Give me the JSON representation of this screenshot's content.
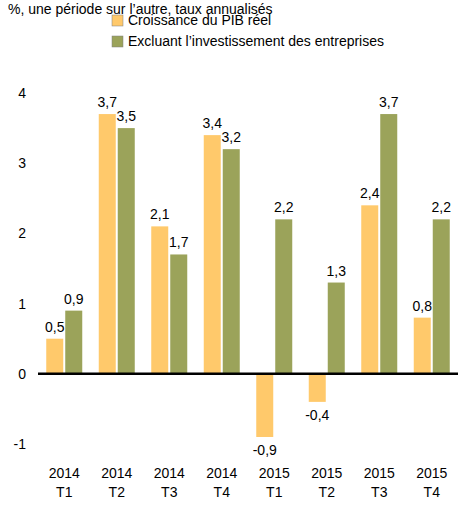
{
  "chart_data": {
    "type": "bar",
    "y_label": "%, une période sur l’autre, taux annualisés",
    "categories": [
      "2014\nT1",
      "2014\nT2",
      "2014\nT3",
      "2014\nT4",
      "2015\nT1",
      "2015\nT2",
      "2015\nT3",
      "2015\nT4"
    ],
    "series": [
      {
        "name": "Croissance du PIB réel",
        "color": "#ffc96b",
        "values": [
          0.5,
          3.7,
          2.1,
          3.4,
          -0.9,
          -0.4,
          2.4,
          0.8
        ],
        "value_labels": [
          "0,5",
          "3,7",
          "2,1",
          "3,4",
          "-0,9",
          "-0,4",
          "2,4",
          "0,8"
        ]
      },
      {
        "name": "Excluant l’investissement des entreprises",
        "color": "#9ba35a",
        "values": [
          0.9,
          3.5,
          1.7,
          3.2,
          2.2,
          1.3,
          3.7,
          2.2
        ],
        "value_labels": [
          "0,9",
          "3,5",
          "1,7",
          "3,2",
          "2,2",
          "1,3",
          "3,7",
          "2,2"
        ]
      }
    ],
    "ylim": [
      -1,
      4
    ],
    "yticks": [
      -1,
      0,
      1,
      2,
      3,
      4
    ],
    "grid": false,
    "legend": "top",
    "data_labels": true
  }
}
